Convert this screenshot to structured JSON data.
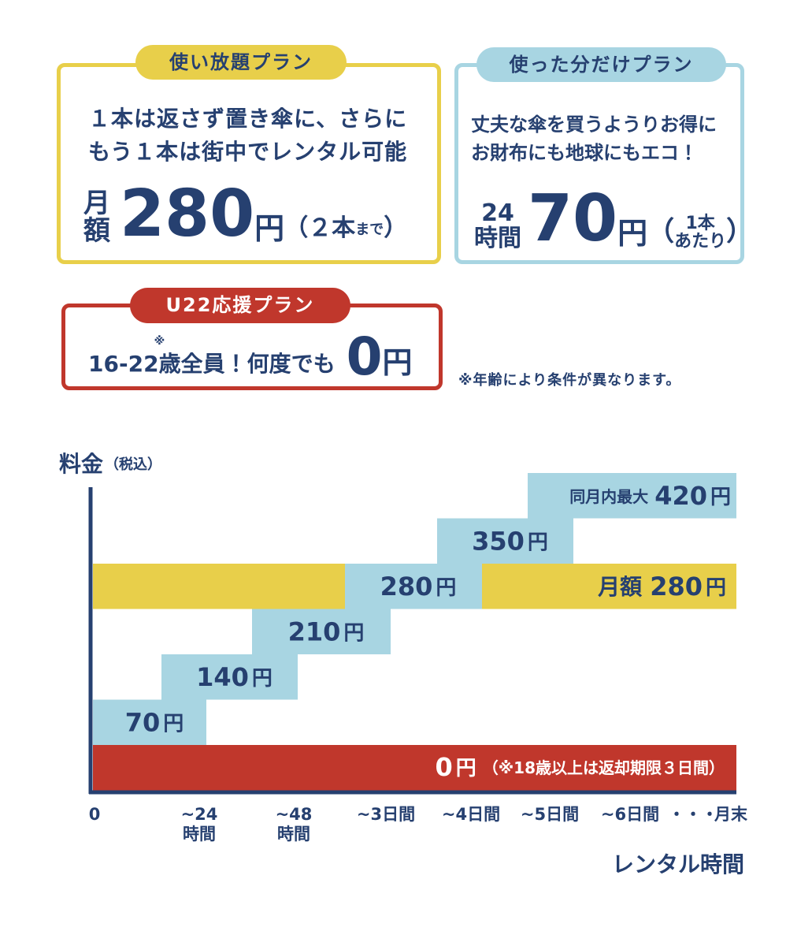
{
  "plans": {
    "unlimited": {
      "badge": "使い放題プラン",
      "lines": [
        "１本は返さず置き傘に、さらに",
        "もう１本は街中でレンタル可能"
      ],
      "prefix": [
        "月",
        "額"
      ],
      "amount": "280",
      "unit": "円",
      "note": [
        "（",
        "２本",
        "まで",
        "）"
      ]
    },
    "pay_per_use": {
      "badge": "使った分だけプラン",
      "lines": [
        "丈夫な傘を買うようりお得に",
        "お財布にも地球にもエコ！"
      ],
      "prefix": [
        "24",
        "時間"
      ],
      "amount": "70",
      "unit": "円",
      "note": [
        "（",
        "1本",
        "あたり",
        "）"
      ]
    },
    "u22": {
      "badge": "U22応援プラン",
      "ages": "16-22",
      "mark": "※",
      "text": "歳全員！何度でも",
      "amount": "0",
      "unit": "円"
    }
  },
  "footnote": "※年齢により条件が異なります。",
  "chart": {
    "y_label": "料金",
    "y_label_note": "（税込）",
    "x_label": "レンタル時間",
    "x_ticks": [
      [
        "0"
      ],
      [
        "~24",
        "時間"
      ],
      [
        "~48",
        "時間"
      ],
      [
        "~3日間"
      ],
      [
        "~4日間"
      ],
      [
        "~5日間"
      ],
      [
        "~6日間"
      ],
      [
        "・・・"
      ],
      [
        "月末"
      ]
    ],
    "steps": [
      {
        "amount": 70,
        "unit": "円"
      },
      {
        "amount": 140,
        "unit": "円"
      },
      {
        "amount": 210,
        "unit": "円"
      },
      {
        "amount": 280,
        "unit": "円"
      },
      {
        "amount": 350,
        "unit": "円"
      }
    ],
    "max": {
      "prefix": "同月内最大",
      "amount": 420,
      "unit": "円"
    },
    "monthly": {
      "prefix": "月額",
      "amount": 280,
      "unit": "円"
    },
    "free": {
      "amount": 0,
      "unit": "円",
      "note": "（※18歳以上は返却期限３日間）"
    }
  }
}
